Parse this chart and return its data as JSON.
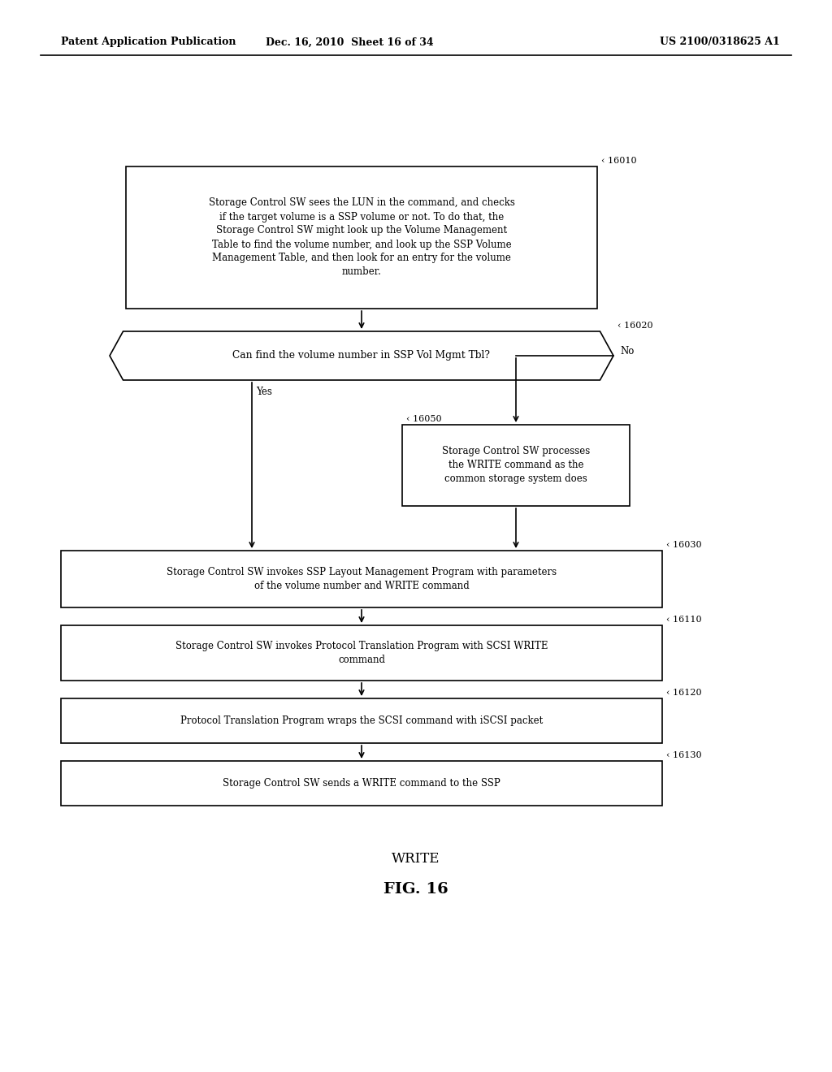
{
  "bg_color": "#ffffff",
  "header_left": "Patent Application Publication",
  "header_mid": "Dec. 16, 2010  Sheet 16 of 34",
  "header_right": "US 2100/0318625 A1",
  "fig_label": "FIG. 16",
  "fig_sublabel": "WRITE",
  "box16010_text": "Storage Control SW sees the LUN in the command, and checks\nif the target volume is a SSP volume or not. To do that, the\nStorage Control SW might look up the Volume Management\nTable to find the volume number, and look up the SSP Volume\nManagement Table, and then look for an entry for the volume\nnumber.",
  "hex16020_text": "Can find the volume number in SSP Vol Mgmt Tbl?",
  "box16050_text": "Storage Control SW processes\nthe WRITE command as the\ncommon storage system does",
  "box16030_text": "Storage Control SW invokes SSP Layout Management Program with parameters\nof the volume number and WRITE command",
  "box16110_text": "Storage Control SW invokes Protocol Translation Program with SCSI WRITE\ncommand",
  "box16120_text": "Protocol Translation Program wraps the SCSI command with iSCSI packet",
  "box16130_text": "Storage Control SW sends a WRITE command to the SSP",
  "ref16010": "16010",
  "ref16020": "16020",
  "ref16050": "16050",
  "ref16030": "16030",
  "ref16110": "16110",
  "ref16120": "16120",
  "ref16130": "16130"
}
